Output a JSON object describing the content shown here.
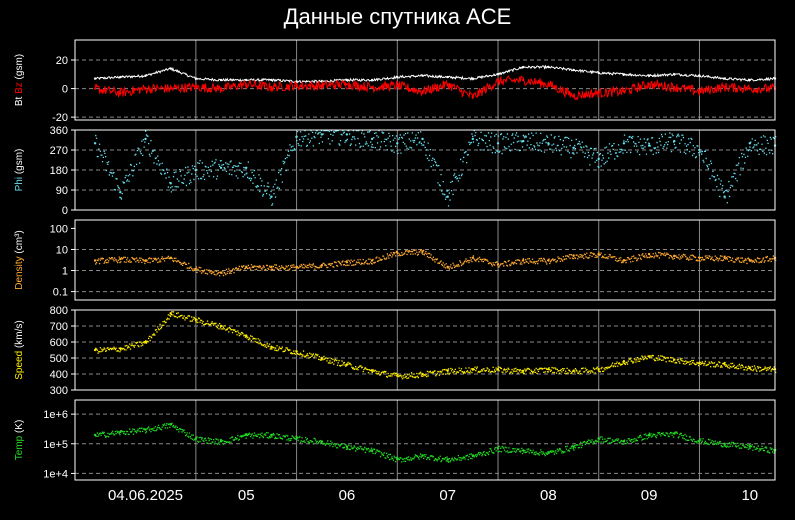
{
  "title": "Данные спутника ACE",
  "colors": {
    "background": "#000000",
    "frame": "#ffffff",
    "grid_vertical": "#888888",
    "grid_horizontal": "#888888",
    "bt": "#ffffff",
    "bz": "#ff0000",
    "phi": "#66e0ee",
    "density": "#ffaa33",
    "speed": "#ffee00",
    "temp": "#22dd22"
  },
  "chart_data": [
    {
      "type": "line",
      "id": "mag",
      "ylabel_parts": [
        {
          "text": "Bt ",
          "color": "#ffffff"
        },
        {
          "text": "Bz",
          "color": "#ff0000"
        },
        {
          "text": " (gsm)",
          "color": "#ffffff"
        }
      ],
      "ylim": [
        -22,
        34
      ],
      "yscale": "linear",
      "yticks": [
        {
          "v": 20,
          "label": "20"
        },
        {
          "v": 0,
          "label": "0"
        },
        {
          "v": -20,
          "label": "-20"
        }
      ],
      "grid_y": [
        20,
        0,
        -20
      ],
      "x": [
        0,
        0.25,
        0.5,
        0.75,
        1.0,
        1.25,
        1.5,
        1.75,
        2.0,
        2.25,
        2.5,
        2.75,
        3.0,
        3.25,
        3.5,
        3.75,
        4.0,
        4.25,
        4.5,
        4.75,
        5.0,
        5.25,
        5.5,
        5.75,
        6.0,
        6.25,
        6.5,
        6.75
      ],
      "series": [
        {
          "key": "bt",
          "values": [
            7,
            8,
            9,
            14,
            7,
            6,
            6,
            6,
            5,
            5,
            6,
            6,
            8,
            9,
            8,
            7,
            10,
            15,
            15,
            13,
            11,
            10,
            9,
            10,
            9,
            7,
            6,
            7
          ]
        },
        {
          "key": "bz",
          "values": [
            0,
            -3,
            0,
            0,
            1,
            0,
            3,
            1,
            2,
            2,
            3,
            1,
            2,
            -2,
            3,
            -6,
            5,
            6,
            3,
            -5,
            -3,
            -2,
            3,
            1,
            -2,
            1,
            0,
            0
          ]
        }
      ]
    },
    {
      "type": "scatter",
      "id": "phi",
      "ylabel_parts": [
        {
          "text": "Phi",
          "color": "#66e0ee"
        },
        {
          "text": " (gsm)",
          "color": "#ffffff"
        }
      ],
      "ylim": [
        0,
        360
      ],
      "yscale": "linear",
      "yticks": [
        {
          "v": 360,
          "label": "360"
        },
        {
          "v": 270,
          "label": "270"
        },
        {
          "v": 180,
          "label": "180"
        },
        {
          "v": 90,
          "label": "90"
        },
        {
          "v": 0,
          "label": "0"
        }
      ],
      "grid_y": [
        270,
        180,
        90
      ],
      "x": [
        0,
        0.25,
        0.5,
        0.75,
        1.0,
        1.25,
        1.5,
        1.75,
        2.0,
        2.25,
        2.5,
        2.75,
        3.0,
        3.25,
        3.5,
        3.75,
        4.0,
        4.25,
        4.5,
        4.75,
        5.0,
        5.25,
        5.5,
        5.75,
        6.0,
        6.25,
        6.5,
        6.75
      ],
      "series": [
        {
          "key": "phi",
          "values": [
            300,
            80,
            320,
            120,
            180,
            190,
            190,
            60,
            330,
            340,
            340,
            320,
            300,
            320,
            60,
            320,
            300,
            310,
            300,
            280,
            230,
            300,
            290,
            310,
            270,
            60,
            300,
            290
          ]
        }
      ]
    },
    {
      "type": "scatter",
      "id": "density",
      "ylabel_parts": [
        {
          "text": "Density",
          "color": "#ffaa33"
        },
        {
          "text": " (cm³)",
          "color": "#ffffff"
        }
      ],
      "ylim": [
        0.04,
        250
      ],
      "yscale": "log",
      "yticks": [
        {
          "v": 100,
          "label": "100"
        },
        {
          "v": 10,
          "label": "10"
        },
        {
          "v": 1,
          "label": "1"
        },
        {
          "v": 0.1,
          "label": "0.1"
        }
      ],
      "grid_y": [
        10,
        1,
        0.1
      ],
      "x": [
        0,
        0.25,
        0.5,
        0.75,
        1.0,
        1.25,
        1.5,
        1.75,
        2.0,
        2.25,
        2.5,
        2.75,
        3.0,
        3.25,
        3.5,
        3.75,
        4.0,
        4.25,
        4.5,
        4.75,
        5.0,
        5.25,
        5.5,
        5.75,
        6.0,
        6.25,
        6.5,
        6.75
      ],
      "series": [
        {
          "key": "density",
          "values": [
            3,
            3.5,
            3,
            4,
            1.2,
            0.8,
            1.5,
            1.5,
            1.5,
            1.8,
            2.5,
            3,
            7,
            8,
            1.5,
            4,
            2,
            3,
            3,
            5,
            6,
            3,
            6,
            5,
            4,
            4,
            3,
            4
          ]
        }
      ]
    },
    {
      "type": "scatter",
      "id": "speed",
      "ylabel_parts": [
        {
          "text": "Speed",
          "color": "#ffee00"
        },
        {
          "text": " (km/s)",
          "color": "#ffffff"
        }
      ],
      "ylim": [
        300,
        800
      ],
      "yscale": "linear",
      "yticks": [
        {
          "v": 800,
          "label": "800"
        },
        {
          "v": 700,
          "label": "700"
        },
        {
          "v": 600,
          "label": "600"
        },
        {
          "v": 500,
          "label": "500"
        },
        {
          "v": 400,
          "label": "400"
        },
        {
          "v": 300,
          "label": "300"
        }
      ],
      "grid_y": [
        700,
        600,
        500,
        400
      ],
      "x": [
        0,
        0.25,
        0.5,
        0.75,
        1.0,
        1.25,
        1.5,
        1.75,
        2.0,
        2.25,
        2.5,
        2.75,
        3.0,
        3.25,
        3.5,
        3.75,
        4.0,
        4.25,
        4.5,
        4.75,
        5.0,
        5.25,
        5.5,
        5.75,
        6.0,
        6.25,
        6.5,
        6.75
      ],
      "series": [
        {
          "key": "speed",
          "values": [
            550,
            560,
            600,
            780,
            740,
            700,
            640,
            570,
            540,
            500,
            460,
            420,
            390,
            400,
            420,
            430,
            430,
            420,
            430,
            420,
            430,
            480,
            510,
            490,
            470,
            460,
            440,
            430
          ]
        }
      ]
    },
    {
      "type": "scatter",
      "id": "temp",
      "ylabel_parts": [
        {
          "text": "Temp",
          "color": "#22dd22"
        },
        {
          "text": " (K)",
          "color": "#ffffff"
        }
      ],
      "ylim": [
        6000,
        3000000
      ],
      "yscale": "log",
      "yticks": [
        {
          "v": 1000000,
          "label": "1e+6"
        },
        {
          "v": 100000,
          "label": "1e+5"
        },
        {
          "v": 10000,
          "label": "1e+4"
        }
      ],
      "grid_y": [
        1000000,
        100000,
        10000
      ],
      "x": [
        0,
        0.25,
        0.5,
        0.75,
        1.0,
        1.25,
        1.5,
        1.75,
        2.0,
        2.25,
        2.5,
        2.75,
        3.0,
        3.25,
        3.5,
        3.75,
        4.0,
        4.25,
        4.5,
        4.75,
        5.0,
        5.25,
        5.5,
        5.75,
        6.0,
        6.25,
        6.5,
        6.75
      ],
      "series": [
        {
          "key": "temp",
          "values": [
            200000,
            250000,
            300000,
            450000,
            150000,
            120000,
            200000,
            200000,
            150000,
            120000,
            80000,
            60000,
            30000,
            40000,
            30000,
            40000,
            70000,
            60000,
            50000,
            80000,
            150000,
            120000,
            200000,
            220000,
            130000,
            100000,
            80000,
            60000
          ]
        }
      ]
    }
  ],
  "x_axis": {
    "range": [
      -0.2,
      6.75
    ],
    "grid": [
      1,
      2,
      3,
      4,
      5,
      6
    ],
    "labels": [
      {
        "x": 0.5,
        "text": "04.06.2025"
      },
      {
        "x": 1.5,
        "text": "05"
      },
      {
        "x": 2.5,
        "text": "06"
      },
      {
        "x": 3.5,
        "text": "07"
      },
      {
        "x": 4.5,
        "text": "08"
      },
      {
        "x": 5.5,
        "text": "09"
      },
      {
        "x": 6.5,
        "text": "10"
      }
    ]
  }
}
